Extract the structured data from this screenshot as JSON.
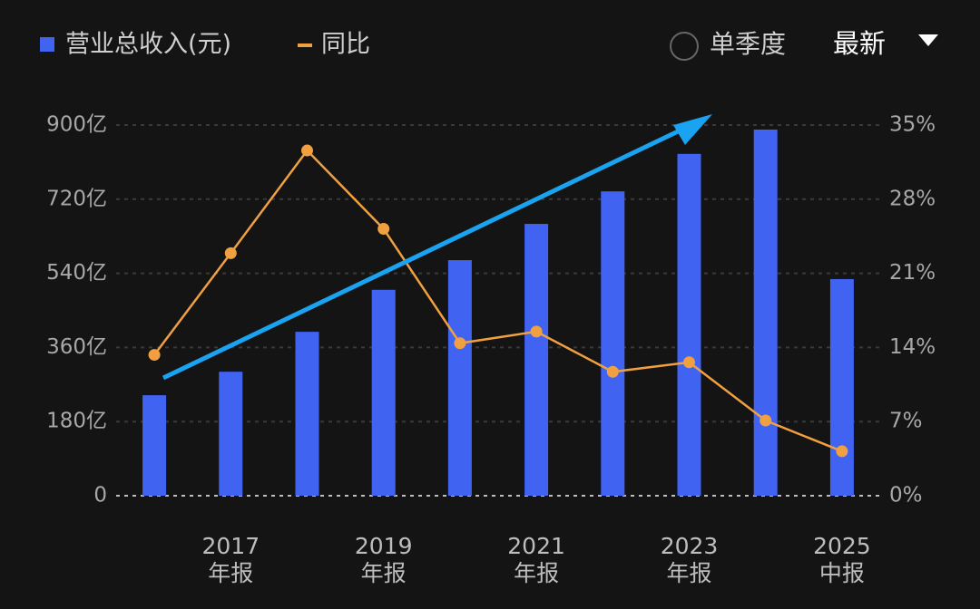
{
  "chart_data": {
    "type": "bar",
    "legend_position": "top-left",
    "series": [
      {
        "name": "营业总收入(元)",
        "type": "bar",
        "color": "#4163f2",
        "values": [
          244,
          301,
          398,
          500,
          572,
          660,
          739,
          830,
          889,
          526
        ]
      },
      {
        "name": "同比",
        "type": "line",
        "axis": "y2",
        "color": "#f0a040",
        "values": [
          13.3,
          22.9,
          32.6,
          25.2,
          14.4,
          15.5,
          11.7,
          12.6,
          7.1,
          4.2
        ]
      }
    ],
    "categories": [
      null,
      "2017\n年报",
      null,
      "2019\n年报",
      null,
      "2021\n年报",
      null,
      "2023\n年报",
      null,
      "2025\n中报"
    ],
    "ylim": [
      0,
      900
    ],
    "yticks": [
      0,
      {
        "value": 180,
        "label": "180亿"
      },
      {
        "value": 360,
        "label": "360亿"
      },
      {
        "value": 540,
        "label": "540亿"
      },
      {
        "value": 720,
        "label": "720亿"
      },
      {
        "value": 900,
        "label": "900亿"
      }
    ],
    "y2lim": [
      0,
      35
    ],
    "y2ticks": [
      {
        "value": 0,
        "label": "0%"
      },
      {
        "value": 7,
        "label": "7%"
      },
      {
        "value": 14,
        "label": "14%"
      },
      {
        "value": 21,
        "label": "21%"
      },
      {
        "value": 28,
        "label": "28%"
      },
      {
        "value": 35,
        "label": "35%"
      }
    ],
    "grid": true
  },
  "controls": {
    "quarterly": "单季度",
    "period": "最新"
  }
}
